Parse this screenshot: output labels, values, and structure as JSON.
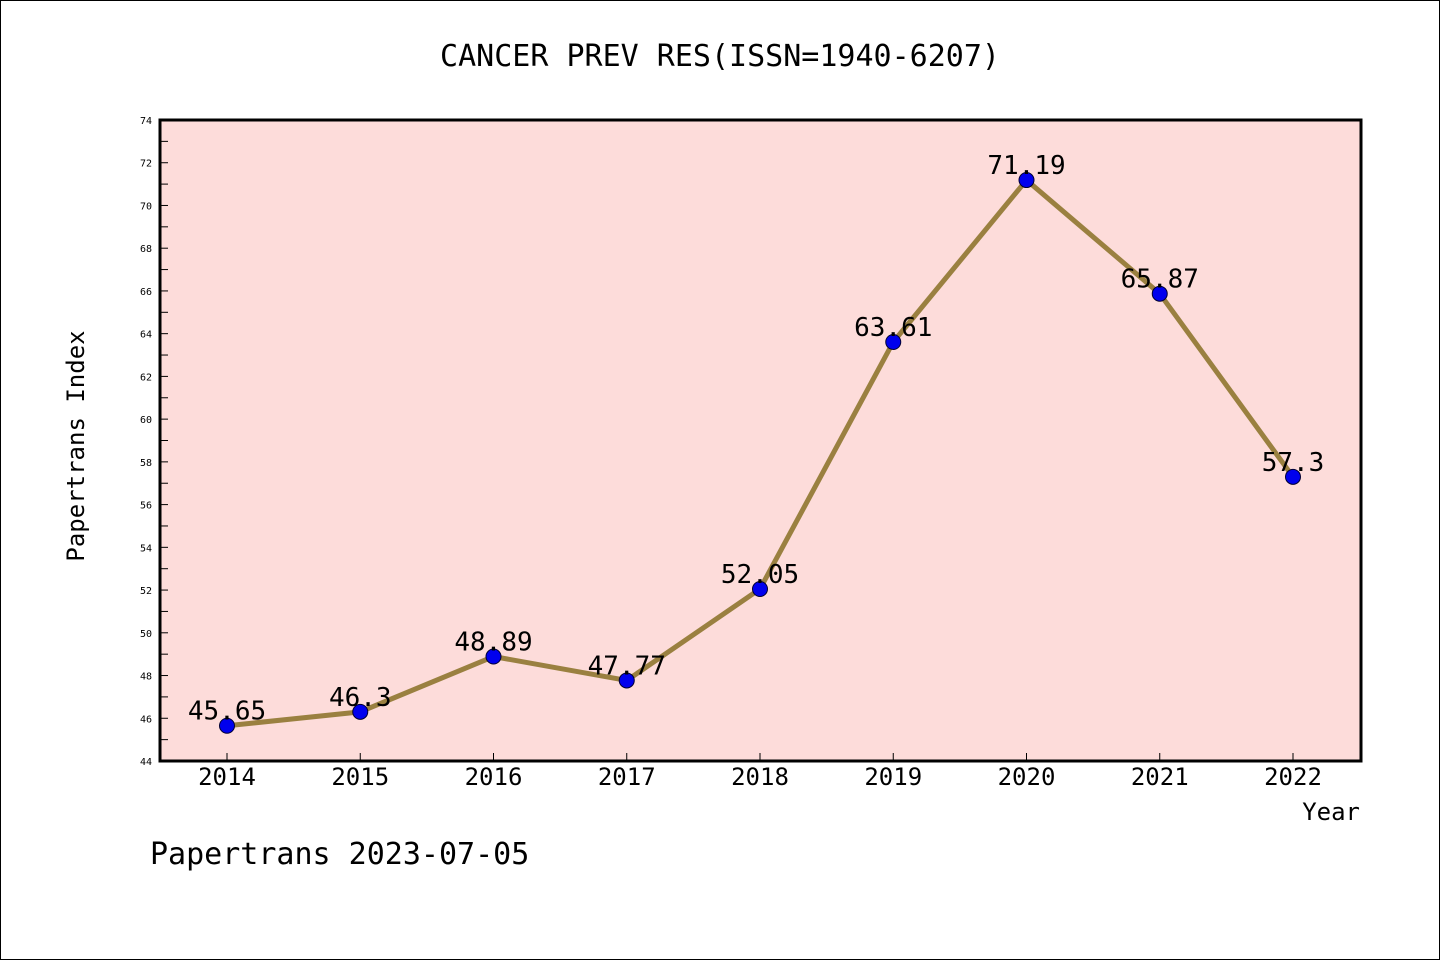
{
  "chart_data": {
    "type": "line",
    "title": "CANCER PREV RES(ISSN=1940-6207)",
    "xlabel": "Year",
    "ylabel": "Papertrans Index",
    "categories": [
      "2014",
      "2015",
      "2016",
      "2017",
      "2018",
      "2019",
      "2020",
      "2021",
      "2022"
    ],
    "series": [
      {
        "values": [
          45.65,
          46.3,
          48.89,
          47.77,
          52.05,
          63.61,
          71.19,
          65.87,
          57.3
        ],
        "labels": [
          "45.65",
          "46.3",
          "48.89",
          "47.77",
          "52.05",
          "63.61",
          "71.19",
          "65.87",
          "57.3"
        ]
      }
    ],
    "ylim": [
      44,
      74
    ],
    "yticks": [
      "44",
      "46",
      "48",
      "50",
      "52",
      "54",
      "56",
      "58",
      "60",
      "62",
      "64",
      "66",
      "68",
      "70",
      "72",
      "74"
    ],
    "grid": false,
    "legend": "none",
    "colors": {
      "plot_background": "#FDDCDA",
      "line": "#9A8040",
      "marker": "#0000EE",
      "axes": "#000000"
    }
  },
  "footer": {
    "watermark": "Papertrans 2023-07-05"
  }
}
